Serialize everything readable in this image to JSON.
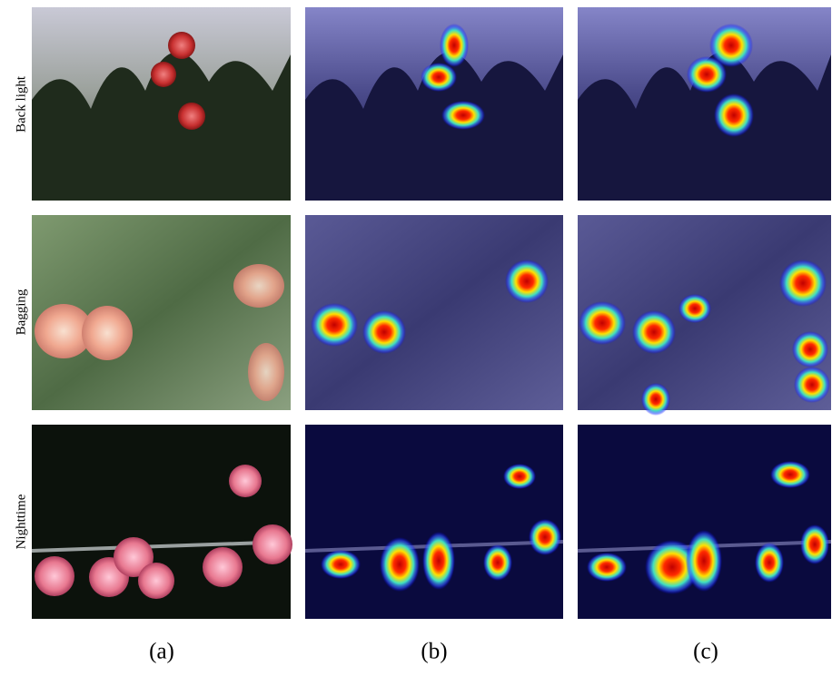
{
  "rows": [
    {
      "label": "Back light"
    },
    {
      "label": "Bagging"
    },
    {
      "label": "Nighttime"
    }
  ],
  "columns": [
    "(a)",
    "(b)",
    "(c)"
  ]
}
